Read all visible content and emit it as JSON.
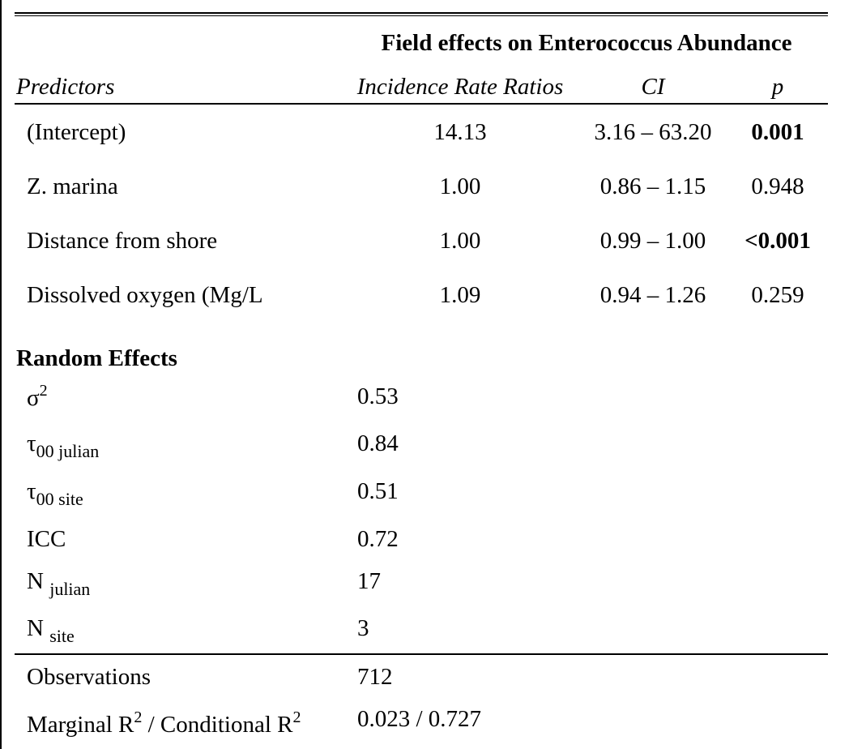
{
  "table": {
    "title": "Field effects on Enterococcus Abundance",
    "headers": {
      "predictors": "Predictors",
      "irr": "Incidence Rate Ratios",
      "ci": "CI",
      "p": "p"
    },
    "rows": [
      {
        "predictor": "(Intercept)",
        "irr": "14.13",
        "ci": "3.16 – 63.20",
        "p": "0.001",
        "p_bold": true
      },
      {
        "predictor": "Z. marina",
        "irr": "1.00",
        "ci": "0.86 – 1.15",
        "p": "0.948",
        "p_bold": false
      },
      {
        "predictor": "Distance from shore",
        "irr": "1.00",
        "ci": "0.99 – 1.00",
        "p": "<0.001",
        "p_bold": true
      },
      {
        "predictor": "Dissolved oxygen (Mg/L",
        "irr": "1.09",
        "ci": "0.94 – 1.26",
        "p": "0.259",
        "p_bold": false
      }
    ],
    "random_effects": {
      "heading": "Random Effects",
      "sigma2": {
        "symbol": "σ",
        "sup": "2",
        "value": "0.53"
      },
      "tau_julian": {
        "symbol": "τ",
        "sub": "00 julian",
        "value": "0.84"
      },
      "tau_site": {
        "symbol": "τ",
        "sub": "00 site",
        "value": "0.51"
      },
      "icc": {
        "label": "ICC",
        "value": "0.72"
      },
      "n_julian": {
        "label": "N",
        "sub": "julian",
        "value": "17"
      },
      "n_site": {
        "label": "N",
        "sub": "site",
        "value": "3"
      }
    },
    "footer": {
      "observations": {
        "label": "Observations",
        "value": "712"
      },
      "r2": {
        "marginal": "Marginal R",
        "sup1": "2",
        "separator": " / Conditional R",
        "sup2": "2",
        "value": "0.023 / 0.727"
      }
    }
  }
}
